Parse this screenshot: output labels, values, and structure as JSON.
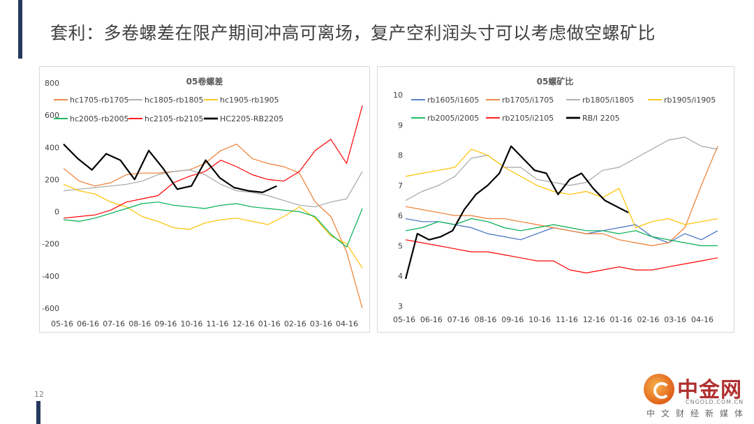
{
  "slide": {
    "title": "套利：多卷螺差在限产期间冲高可离场，复产空利润头寸可以考虑做空螺矿比",
    "page_number": "12"
  },
  "watermark": {
    "name": "中金网",
    "domain": "CNGOLD.COM.CN",
    "tagline": "中文财经新媒体"
  },
  "chart_data": [
    {
      "type": "line",
      "title": "05卷螺差",
      "x_ticks": [
        "05-16",
        "06-16",
        "07-16",
        "08-16",
        "09-16",
        "10-16",
        "11-16",
        "12-16",
        "01-16",
        "02-16",
        "03-16",
        "04-16"
      ],
      "y_ticks": [
        "800",
        "600",
        "400",
        "200",
        "0",
        "-200",
        "-400",
        "-600"
      ],
      "ylim": [
        -600,
        800
      ],
      "legend_placement": "top",
      "grid": false,
      "series": [
        {
          "name": "hc1705-rb1705",
          "color": "#ed7d31",
          "width": 1.2,
          "values": [
            270,
            190,
            160,
            180,
            230,
            240,
            240,
            250,
            260,
            300,
            380,
            420,
            330,
            300,
            280,
            240,
            60,
            -30,
            -250,
            -600
          ]
        },
        {
          "name": "hc1805-rb1805",
          "color": "#a5a5a5",
          "width": 1.2,
          "values": [
            130,
            140,
            150,
            160,
            170,
            190,
            230,
            250,
            260,
            230,
            170,
            130,
            120,
            100,
            70,
            40,
            30,
            60,
            80,
            250
          ]
        },
        {
          "name": "hc1905-rb1905",
          "color": "#ffc000",
          "width": 1.2,
          "values": [
            170,
            130,
            110,
            60,
            30,
            -30,
            -60,
            -100,
            -110,
            -70,
            -50,
            -40,
            -60,
            -80,
            -30,
            30,
            -40,
            -150,
            -200,
            -350
          ]
        },
        {
          "name": "hc2005-rb2005",
          "color": "#00b050",
          "width": 1.2,
          "values": [
            -50,
            -60,
            -40,
            -10,
            20,
            50,
            60,
            40,
            30,
            20,
            40,
            50,
            30,
            20,
            10,
            0,
            -30,
            -140,
            -220,
            20
          ]
        },
        {
          "name": "hc2105-rb2105",
          "color": "#ff0000",
          "width": 1.2,
          "values": [
            -40,
            -30,
            -20,
            10,
            60,
            80,
            100,
            180,
            220,
            250,
            320,
            280,
            230,
            200,
            190,
            250,
            380,
            450,
            300,
            660
          ]
        },
        {
          "name": "HC2205-RB2205",
          "color": "#000000",
          "width": 2.2,
          "values": [
            420,
            330,
            260,
            360,
            320,
            200,
            380,
            270,
            140,
            160,
            320,
            210,
            150,
            130,
            120,
            160
          ]
        }
      ]
    },
    {
      "type": "line",
      "title": "05螺矿比",
      "x_ticks": [
        "05-16",
        "06-16",
        "07-16",
        "08-16",
        "09-16",
        "10-16",
        "11-16",
        "12-16",
        "01-16",
        "02-16",
        "03-16",
        "04-16"
      ],
      "y_ticks": [
        "10",
        "9",
        "8",
        "7",
        "6",
        "5",
        "4",
        "3"
      ],
      "ylim": [
        3,
        10
      ],
      "legend_placement": "top",
      "grid": false,
      "series": [
        {
          "name": "rb1605/i1605",
          "color": "#4472c4",
          "width": 1.2,
          "values": [
            5.9,
            5.8,
            5.8,
            5.7,
            5.6,
            5.4,
            5.3,
            5.2,
            5.4,
            5.6,
            5.5,
            5.4,
            5.5,
            5.6,
            5.7,
            5.3,
            5.1,
            5.4,
            5.2,
            5.5
          ]
        },
        {
          "name": "rb1705/i1705",
          "color": "#ed7d31",
          "width": 1.2,
          "values": [
            6.3,
            6.2,
            6.1,
            6.0,
            6.0,
            5.9,
            5.9,
            5.8,
            5.7,
            5.6,
            5.5,
            5.4,
            5.4,
            5.2,
            5.1,
            5.0,
            5.1,
            5.6,
            7.0,
            8.3
          ]
        },
        {
          "name": "rb1805/i1805",
          "color": "#a5a5a5",
          "width": 1.2,
          "values": [
            6.5,
            6.8,
            7.0,
            7.3,
            7.9,
            8.0,
            7.6,
            7.6,
            7.2,
            7.1,
            7.0,
            7.1,
            7.5,
            7.6,
            7.9,
            8.2,
            8.5,
            8.6,
            8.3,
            8.2
          ]
        },
        {
          "name": "rb1905/i1905",
          "color": "#ffc000",
          "width": 1.2,
          "values": [
            7.3,
            7.4,
            7.5,
            7.6,
            8.2,
            8.0,
            7.6,
            7.3,
            7.0,
            6.8,
            6.7,
            6.8,
            6.6,
            6.9,
            5.6,
            5.8,
            5.9,
            5.7,
            5.8,
            5.9
          ]
        },
        {
          "name": "rb2005/i2005",
          "color": "#00b050",
          "width": 1.2,
          "values": [
            5.5,
            5.6,
            5.8,
            5.7,
            5.9,
            5.8,
            5.6,
            5.5,
            5.6,
            5.7,
            5.6,
            5.5,
            5.5,
            5.4,
            5.5,
            5.3,
            5.2,
            5.1,
            5.0,
            5.0
          ]
        },
        {
          "name": "rb2105/i2105",
          "color": "#ff0000",
          "width": 1.2,
          "values": [
            5.2,
            5.1,
            5.0,
            4.9,
            4.8,
            4.8,
            4.7,
            4.6,
            4.5,
            4.5,
            4.2,
            4.1,
            4.2,
            4.3,
            4.2,
            4.2,
            4.3,
            4.4,
            4.5,
            4.6
          ]
        },
        {
          "name": "RB/I 2205",
          "color": "#000000",
          "width": 2.2,
          "values": [
            3.9,
            5.4,
            5.2,
            5.3,
            5.5,
            6.2,
            6.7,
            7.0,
            7.4,
            8.3,
            7.9,
            7.5,
            7.4,
            6.7,
            7.2,
            7.4,
            6.9,
            6.5,
            6.3,
            6.1
          ]
        }
      ]
    }
  ]
}
